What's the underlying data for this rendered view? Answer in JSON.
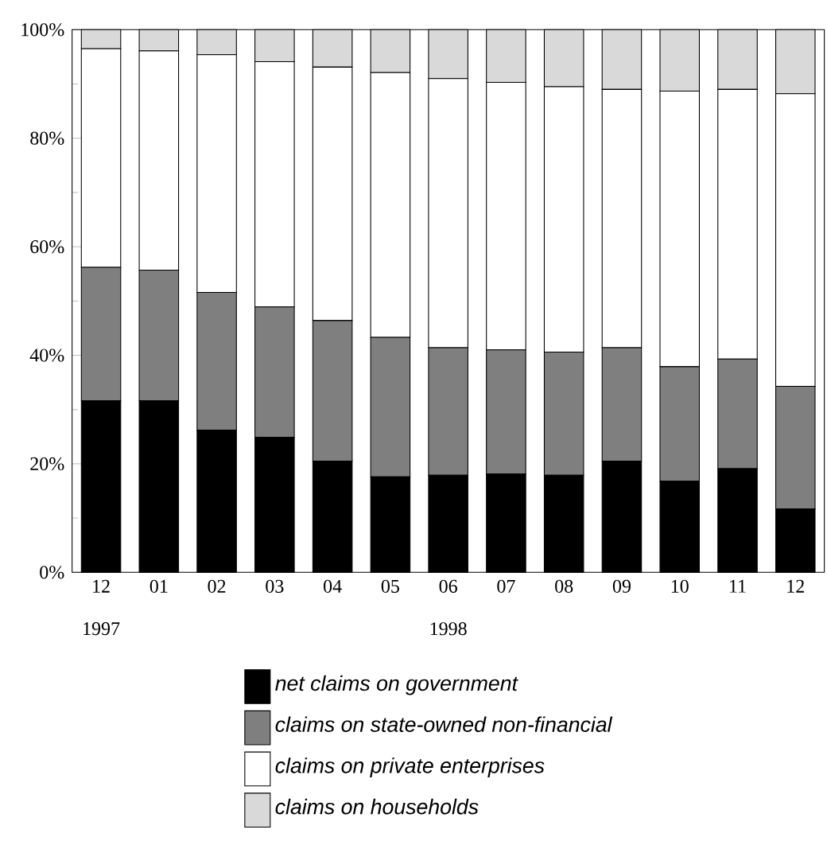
{
  "chart_data": {
    "type": "bar",
    "stacked": true,
    "categories": [
      "12",
      "01",
      "02",
      "03",
      "04",
      "05",
      "06",
      "07",
      "08",
      "09",
      "10",
      "11",
      "12"
    ],
    "series": [
      {
        "name": "net claims on government",
        "color": "#000000",
        "values": [
          31.6,
          31.6,
          26.2,
          24.9,
          20.5,
          17.6,
          17.9,
          18.1,
          17.9,
          20.5,
          16.8,
          19.1,
          11.7
        ]
      },
      {
        "name": "claims on state-owned non-financial",
        "color": "#7f7f7f",
        "values": [
          24.6,
          24.1,
          25.4,
          24.0,
          25.9,
          25.7,
          23.5,
          22.9,
          22.7,
          20.9,
          21.1,
          20.2,
          22.6
        ]
      },
      {
        "name": "claims on private enterprises",
        "color": "#ffffff",
        "values": [
          40.3,
          40.4,
          43.8,
          45.2,
          46.7,
          48.8,
          49.6,
          49.3,
          48.9,
          47.6,
          50.8,
          49.7,
          53.9
        ]
      },
      {
        "name": "claims on households",
        "color": "#d9d9d9",
        "values": [
          3.5,
          3.9,
          4.6,
          5.9,
          6.9,
          7.9,
          9.0,
          9.7,
          10.5,
          11.0,
          11.3,
          11.0,
          11.8
        ]
      }
    ],
    "ylim": [
      0,
      100
    ],
    "yticks": [
      {
        "value": 0,
        "label": "0%"
      },
      {
        "value": 20,
        "label": "20%"
      },
      {
        "value": 40,
        "label": "40%"
      },
      {
        "value": 60,
        "label": "60%"
      },
      {
        "value": 80,
        "label": "80%"
      },
      {
        "value": 100,
        "label": "100%"
      }
    ],
    "annotations": [
      "1997",
      "1998"
    ],
    "legend": "bottom"
  }
}
